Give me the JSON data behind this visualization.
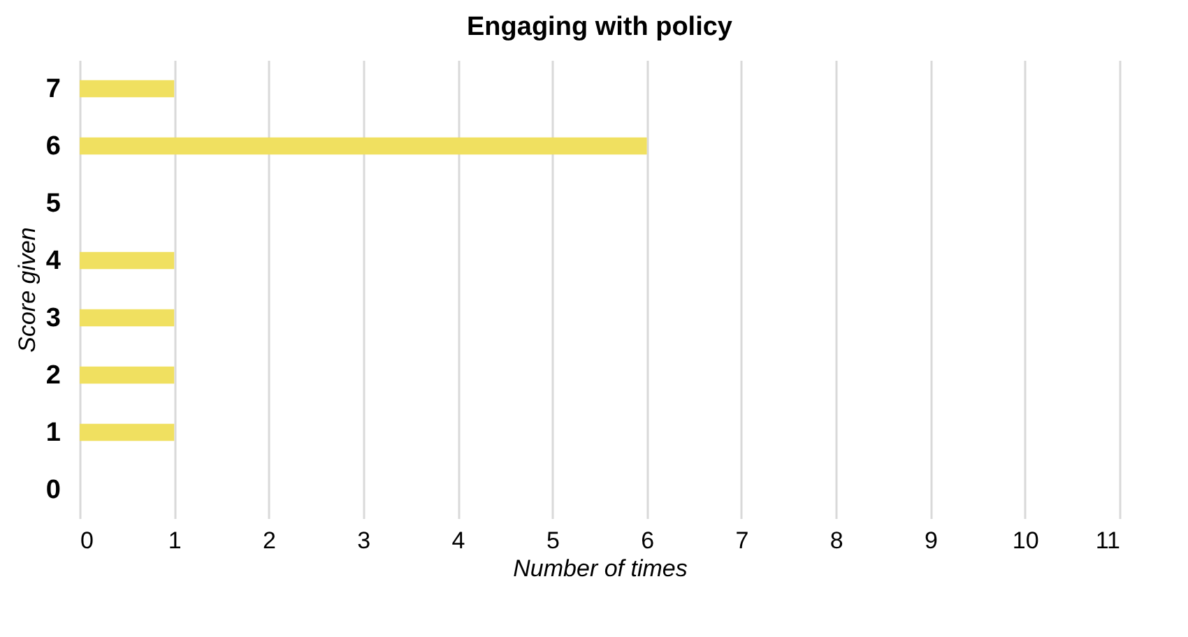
{
  "chart_data": {
    "type": "bar",
    "orientation": "horizontal",
    "title": "Engaging with policy",
    "xlabel": "Number of times",
    "ylabel": "Score given",
    "categories": [
      "7",
      "6",
      "5",
      "4",
      "3",
      "2",
      "1",
      "0"
    ],
    "values": [
      1,
      6,
      0,
      1,
      1,
      1,
      1,
      0
    ],
    "color": "#f0e060",
    "xlim": [
      0,
      11
    ],
    "xticks": [
      0,
      1,
      2,
      3,
      4,
      5,
      6,
      7,
      8,
      9,
      10,
      11
    ],
    "grid": "x"
  }
}
